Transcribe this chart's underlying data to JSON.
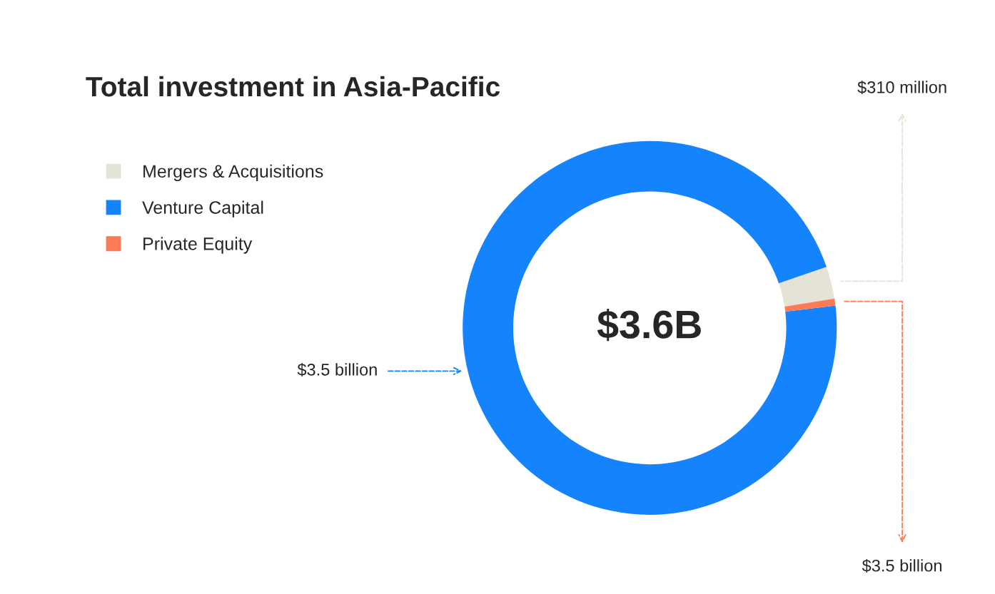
{
  "chart_data": {
    "type": "donut",
    "title": "Total investment in Asia-Pacific",
    "categories": [
      "Mergers & Acquisitions",
      "Venture Capital",
      "Private Equity"
    ],
    "values": [
      2.8,
      96.6,
      0.6
    ],
    "colors": [
      "#e5e3d5",
      "#1584fc",
      "#fc7a57"
    ],
    "annotations": [
      "$3.6B",
      "$310 million",
      "$3.5 billion",
      "$3.5 billion"
    ],
    "legend": "top left"
  }
}
